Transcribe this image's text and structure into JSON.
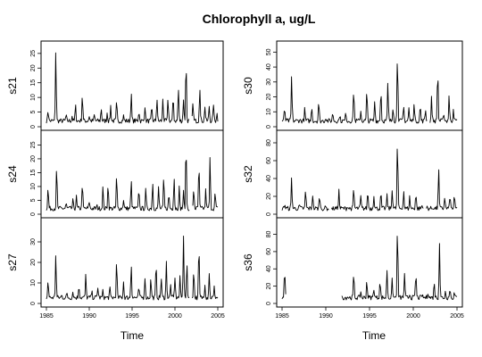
{
  "chart_data": {
    "type": "line",
    "title": "Chlorophyll a, ug/L",
    "xlabel": "Time",
    "xlim": [
      1985,
      2005
    ],
    "xticks": [
      "1985",
      "1990",
      "1995",
      "2000",
      "2005"
    ],
    "panels": [
      {
        "name": "s21",
        "ylabel": "s21",
        "ylim": [
          0,
          28
        ],
        "yticks": [
          0,
          5,
          10,
          15,
          20,
          25
        ],
        "peaks": [
          [
            1985.2,
            6
          ],
          [
            1986.1,
            27
          ],
          [
            1987.3,
            4
          ],
          [
            1988.0,
            4
          ],
          [
            1988.4,
            8
          ],
          [
            1989.2,
            12
          ],
          [
            1990.0,
            4
          ],
          [
            1990.6,
            4
          ],
          [
            1991.4,
            7
          ],
          [
            1992.1,
            5
          ],
          [
            1992.5,
            8
          ],
          [
            1993.2,
            9
          ],
          [
            1994.0,
            4
          ],
          [
            1994.9,
            12.5
          ],
          [
            1995.8,
            6
          ],
          [
            1996.5,
            8
          ],
          [
            1997.3,
            7
          ],
          [
            1997.9,
            11
          ],
          [
            1998.6,
            10
          ],
          [
            1999.2,
            10
          ],
          [
            1999.8,
            11
          ],
          [
            2000.4,
            15
          ],
          [
            2001.0,
            11
          ],
          [
            2001.3,
            25.5
          ],
          [
            2002.1,
            9
          ],
          [
            2002.9,
            16
          ],
          [
            2003.5,
            8
          ],
          [
            2004.0,
            8
          ],
          [
            2004.5,
            9
          ],
          [
            2004.9,
            5
          ]
        ],
        "gaps": [
          [
            2001.7,
            2001.95
          ]
        ]
      },
      {
        "name": "s24",
        "ylabel": "s24",
        "ylim": [
          0,
          29
        ],
        "yticks": [
          0,
          5,
          10,
          15,
          20,
          25
        ],
        "peaks": [
          [
            1985.2,
            10
          ],
          [
            1986.2,
            18
          ],
          [
            1987.3,
            4
          ],
          [
            1988.1,
            5
          ],
          [
            1988.5,
            7
          ],
          [
            1989.2,
            12
          ],
          [
            1990.0,
            5
          ],
          [
            1990.9,
            3
          ],
          [
            1991.6,
            10
          ],
          [
            1992.2,
            12
          ],
          [
            1993.2,
            15
          ],
          [
            1994.0,
            6
          ],
          [
            1994.9,
            13.5
          ],
          [
            1995.8,
            10
          ],
          [
            1996.6,
            9
          ],
          [
            1997.4,
            13
          ],
          [
            1998.1,
            10
          ],
          [
            1998.7,
            14
          ],
          [
            1999.3,
            8
          ],
          [
            1999.9,
            15.5
          ],
          [
            2000.5,
            11
          ],
          [
            2001.0,
            9
          ],
          [
            2001.3,
            28.5
          ],
          [
            2002.2,
            10
          ],
          [
            2002.8,
            20
          ],
          [
            2003.6,
            9
          ],
          [
            2004.1,
            21
          ],
          [
            2004.7,
            8
          ]
        ],
        "gaps": [
          [
            2001.75,
            2002.0
          ]
        ]
      },
      {
        "name": "s27",
        "ylabel": "s27",
        "ylim": [
          0,
          40
        ],
        "yticks": [
          0,
          10,
          20,
          30
        ],
        "peaks": [
          [
            1985.2,
            12
          ],
          [
            1986.1,
            25
          ],
          [
            1986.8,
            4
          ],
          [
            1987.4,
            5
          ],
          [
            1988.1,
            6
          ],
          [
            1988.8,
            10
          ],
          [
            1989.6,
            14
          ],
          [
            1990.3,
            6
          ],
          [
            1991.0,
            9
          ],
          [
            1991.6,
            6
          ],
          [
            1992.4,
            8
          ],
          [
            1993.2,
            22
          ],
          [
            1994.0,
            12
          ],
          [
            1994.9,
            22
          ],
          [
            1995.8,
            8
          ],
          [
            1996.5,
            15
          ],
          [
            1997.2,
            13
          ],
          [
            1997.8,
            21
          ],
          [
            1998.4,
            14
          ],
          [
            1999.0,
            23
          ],
          [
            1999.5,
            10
          ],
          [
            2000.0,
            15
          ],
          [
            2000.6,
            13
          ],
          [
            2001.0,
            39
          ],
          [
            2001.4,
            22
          ],
          [
            2002.2,
            18
          ],
          [
            2002.8,
            31
          ],
          [
            2003.5,
            11
          ],
          [
            2004.0,
            17
          ],
          [
            2004.6,
            8
          ]
        ],
        "gaps": [
          [
            2001.7,
            2001.95
          ]
        ]
      },
      {
        "name": "s30",
        "ylabel": "s30",
        "ylim": [
          0,
          55
        ],
        "yticks": [
          0,
          10,
          20,
          30,
          40,
          50
        ],
        "peaks": [
          [
            1985.3,
            13
          ],
          [
            1986.1,
            35
          ],
          [
            1987.0,
            5
          ],
          [
            1987.6,
            12
          ],
          [
            1988.4,
            15
          ],
          [
            1989.2,
            18
          ],
          [
            1990.0,
            7
          ],
          [
            1990.8,
            10
          ],
          [
            1991.6,
            8
          ],
          [
            1992.3,
            10
          ],
          [
            1993.2,
            27
          ],
          [
            1994.0,
            12
          ],
          [
            1994.7,
            25
          ],
          [
            1995.6,
            18
          ],
          [
            1996.3,
            28
          ],
          [
            1997.1,
            30
          ],
          [
            1997.7,
            15
          ],
          [
            1998.2,
            53
          ],
          [
            1998.9,
            15
          ],
          [
            1999.5,
            14
          ],
          [
            2000.1,
            17
          ],
          [
            2000.8,
            15
          ],
          [
            2001.4,
            13
          ],
          [
            2002.1,
            20
          ],
          [
            2002.8,
            43
          ],
          [
            2003.5,
            10
          ],
          [
            2004.1,
            22
          ],
          [
            2004.6,
            13
          ]
        ],
        "gaps": [
          [
            2001.6,
            2001.85
          ]
        ]
      },
      {
        "name": "s32",
        "ylabel": "s32",
        "ylim": [
          0,
          90
        ],
        "yticks": [
          0,
          20,
          40,
          60,
          80
        ],
        "peaks": [
          [
            1985.3,
            12
          ],
          [
            1986.1,
            42
          ],
          [
            1987.0,
            10
          ],
          [
            1987.7,
            28
          ],
          [
            1988.5,
            25
          ],
          [
            1989.3,
            22
          ],
          [
            1990.0,
            8
          ],
          [
            1990.8,
            6
          ],
          [
            1991.5,
            30
          ],
          [
            1992.5,
            10
          ],
          [
            1993.2,
            30
          ],
          [
            1994.0,
            22
          ],
          [
            1994.8,
            28
          ],
          [
            1995.5,
            25
          ],
          [
            1996.3,
            25
          ],
          [
            1997.0,
            23
          ],
          [
            1997.6,
            30
          ],
          [
            1998.2,
            88
          ],
          [
            1998.9,
            30
          ],
          [
            1999.6,
            20
          ],
          [
            2000.3,
            25
          ],
          [
            2001.0,
            10
          ],
          [
            2001.6,
            8
          ],
          [
            2002.3,
            8
          ],
          [
            2002.9,
            58
          ],
          [
            2003.6,
            20
          ],
          [
            2004.2,
            22
          ],
          [
            2004.7,
            20
          ]
        ],
        "gaps": [
          [
            1990.35,
            1990.6
          ],
          [
            2001.2,
            2001.45
          ]
        ]
      },
      {
        "name": "s36",
        "ylabel": "s36",
        "ylim": [
          0,
          95
        ],
        "yticks": [
          0,
          20,
          40,
          60,
          80
        ],
        "peaks": [
          [
            1985.3,
            40
          ],
          [
            1992.5,
            8
          ],
          [
            1993.2,
            35
          ],
          [
            1994.0,
            15
          ],
          [
            1994.7,
            28
          ],
          [
            1995.5,
            20
          ],
          [
            1996.2,
            28
          ],
          [
            1997.0,
            45
          ],
          [
            1997.6,
            28
          ],
          [
            1998.2,
            93
          ],
          [
            1999.0,
            38
          ],
          [
            1999.6,
            12
          ],
          [
            2000.3,
            38
          ],
          [
            2001.0,
            10
          ],
          [
            2001.7,
            15
          ],
          [
            2002.4,
            28
          ],
          [
            2003.0,
            82
          ],
          [
            2003.7,
            15
          ],
          [
            2004.2,
            18
          ],
          [
            2004.7,
            12
          ]
        ],
        "gaps": [
          [
            1985.5,
            1991.8
          ]
        ]
      }
    ]
  }
}
